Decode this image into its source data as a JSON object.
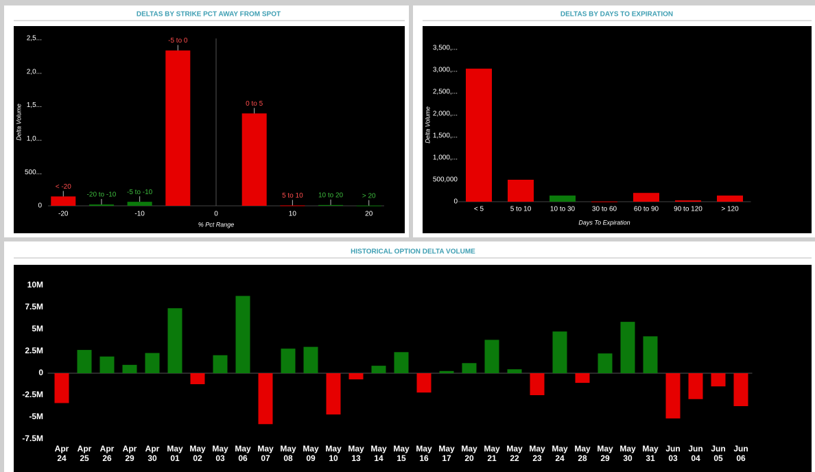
{
  "chart_data": [
    {
      "type": "bar",
      "title": "DELTAS BY STRIKE PCT AWAY FROM SPOT",
      "x_label": "% Pct Range",
      "y_label": "Delta Volume",
      "categories": [
        "< -20",
        "-20 to -10",
        "-5 to -10",
        "-5 to 0",
        "0 to 5",
        "5 to 10",
        "10 to 20",
        "> 20"
      ],
      "x": [
        -20,
        -15,
        -10,
        -5,
        5,
        10,
        15,
        20
      ],
      "values": [
        140000,
        20000,
        60000,
        2320000,
        1380000,
        6000,
        12000,
        4000
      ],
      "colors": [
        "#e60000",
        "#0b7a0b",
        "#0b7a0b",
        "#e60000",
        "#e60000",
        "#e60000",
        "#0b7a0b",
        "#0b7a0b"
      ],
      "bar_labels": true,
      "xlim": [
        -22,
        22
      ],
      "xticks": [
        -20,
        -10,
        0,
        10,
        20
      ],
      "ylim": [
        0,
        2500000
      ],
      "yticks": [
        0,
        {
          "value": 500000,
          "label": "500..."
        },
        {
          "value": 1000000,
          "label": "1,0..."
        },
        {
          "value": 1500000,
          "label": "1,5..."
        },
        {
          "value": 2000000,
          "label": "2,0..."
        },
        {
          "value": 2500000,
          "label": "2,5..."
        }
      ]
    },
    {
      "type": "bar",
      "title": "DELTAS BY DAYS TO EXPIRATION",
      "x_label": "Days To Expiration",
      "y_label": "Delta Volume",
      "categories": [
        "< 5",
        "5 to 10",
        "10 to 30",
        "30 to 60",
        "60 to 90",
        "90 to 120",
        "> 120"
      ],
      "values": [
        3030000,
        500000,
        140000,
        5000,
        200000,
        30000,
        140000
      ],
      "colors": [
        "#e60000",
        "#e60000",
        "#0b7a0b",
        "#e60000",
        "#e60000",
        "#e60000",
        "#e60000"
      ],
      "ylim": [
        0,
        3500000
      ],
      "yticks": [
        0,
        {
          "value": 500000,
          "label": "500,000"
        },
        {
          "value": 1000000,
          "label": "1,000,..."
        },
        {
          "value": 1500000,
          "label": "1,500,..."
        },
        {
          "value": 2000000,
          "label": "2,000,..."
        },
        {
          "value": 2500000,
          "label": "2,500,..."
        },
        {
          "value": 3000000,
          "label": "3,000,..."
        },
        {
          "value": 3500000,
          "label": "3,500,..."
        }
      ]
    },
    {
      "type": "bar",
      "title": "HISTORICAL OPTION DELTA VOLUME",
      "categories": [
        "Apr 24",
        "Apr 25",
        "Apr 26",
        "Apr 29",
        "Apr 30",
        "May 01",
        "May 02",
        "May 03",
        "May 06",
        "May 07",
        "May 08",
        "May 09",
        "May 10",
        "May 13",
        "May 14",
        "May 15",
        "May 16",
        "May 17",
        "May 20",
        "May 21",
        "May 22",
        "May 23",
        "May 24",
        "May 28",
        "May 29",
        "May 30",
        "May 31",
        "Jun 03",
        "Jun 04",
        "Jun 05",
        "Jun 06"
      ],
      "values": [
        -3400000,
        2650000,
        1900000,
        950000,
        2300000,
        7400000,
        -1250000,
        2050000,
        8800000,
        -5800000,
        2800000,
        3000000,
        -4700000,
        -700000,
        850000,
        2400000,
        -2200000,
        250000,
        1150000,
        3800000,
        450000,
        -2500000,
        4750000,
        -1100000,
        2250000,
        5850000,
        4200000,
        -5150000,
        -2950000,
        -1500000,
        -3750000
      ],
      "positive_color": "#0b7a0b",
      "negative_color": "#e60000",
      "zero_line": true,
      "ylim": [
        -7500000,
        10000000
      ],
      "yticks": [
        {
          "value": -7500000,
          "label": "-7.5M"
        },
        {
          "value": -5000000,
          "label": "-5M"
        },
        {
          "value": -2500000,
          "label": "-2.5M"
        },
        0,
        {
          "value": 2500000,
          "label": "2.5M"
        },
        {
          "value": 5000000,
          "label": "5M"
        },
        {
          "value": 7500000,
          "label": "7.5M"
        },
        {
          "value": 10000000,
          "label": "10M"
        }
      ]
    }
  ]
}
